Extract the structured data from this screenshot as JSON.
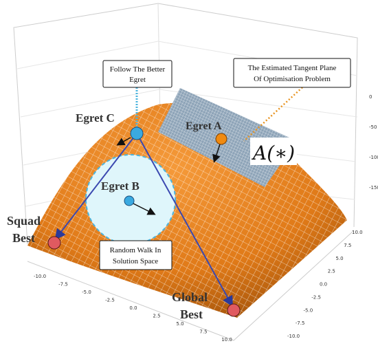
{
  "labels": {
    "egret_a": "Egret A",
    "egret_b": "Egret B",
    "egret_c": "Egret C",
    "tangent": "A(∗)",
    "squad_best": [
      "Squad",
      "Best"
    ],
    "global_best": [
      "Global",
      "Best"
    ]
  },
  "callouts": {
    "follow": [
      "Follow The Better",
      "Egret"
    ],
    "plane": [
      "The Estimated Tangent Plane",
      "Of Optimisation Problem"
    ],
    "walk": [
      "Random Walk In",
      "Solution Space"
    ]
  },
  "axes": {
    "x_ticks": [
      "-10.0",
      "-7.5",
      "-5.0",
      "-2.5",
      "0.0",
      "2.5",
      "5.0",
      "7.5",
      "10.0"
    ],
    "y_ticks": [
      "10.0",
      "7.5",
      "5.0",
      "2.5",
      "0.0",
      "-2.5",
      "-5.0",
      "-7.5",
      "-10.0"
    ],
    "z_ticks": [
      "0",
      "-50",
      "-100",
      "-150"
    ]
  }
}
